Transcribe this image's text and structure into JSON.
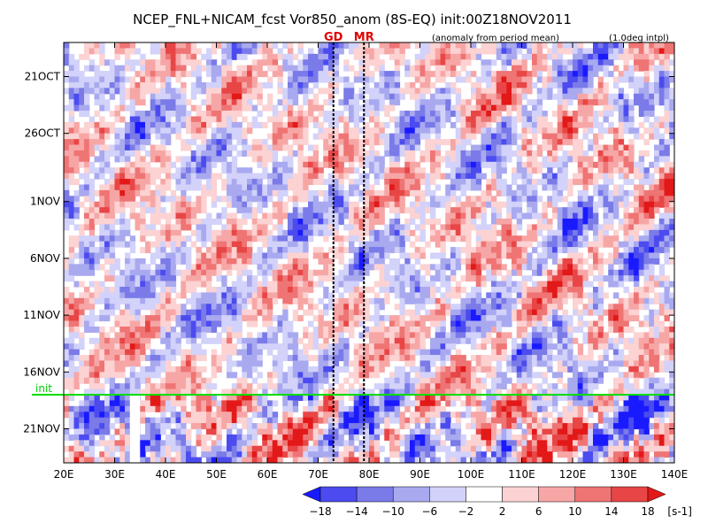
{
  "chart_data": {
    "type": "heatmap",
    "title": "NCEP_FNL+NICAM_fcst Vor850_anom (8S-EQ) init:00Z18NOV2011",
    "note_left": "(anomaly from period mean)",
    "note_right": "(1.0deg intpl)",
    "x_axis": {
      "range": [
        20,
        140
      ],
      "ticks": [
        20,
        30,
        40,
        50,
        60,
        70,
        80,
        90,
        100,
        110,
        120,
        130,
        140
      ],
      "tick_labels": [
        "20E",
        "30E",
        "40E",
        "50E",
        "60E",
        "70E",
        "80E",
        "90E",
        "100E",
        "110E",
        "120E",
        "130E",
        "140E"
      ]
    },
    "y_axis": {
      "start_day": 0,
      "end_day": 37,
      "ticks": [
        3,
        8,
        14,
        19,
        24,
        29,
        34
      ],
      "tick_labels": [
        "21OCT",
        "26OCT",
        "1NOV",
        "6NOV",
        "11NOV",
        "16NOV",
        "21NOV"
      ]
    },
    "markers": [
      {
        "label": "GD",
        "lon": 73
      },
      {
        "label": "MR",
        "lon": 79
      }
    ],
    "init_line": {
      "label": "init",
      "day": 31
    },
    "colorbar": {
      "unit": "[s-1]",
      "levels": [
        -18,
        -14,
        -10,
        -6,
        -2,
        2,
        6,
        10,
        14,
        18
      ],
      "level_labels": [
        "−18",
        "−14",
        "−10",
        "−6",
        "−2",
        "2",
        "6",
        "10",
        "14",
        "18"
      ],
      "colors": [
        "#1a1aff",
        "#4b4bf0",
        "#7a7ae8",
        "#a9a9f0",
        "#d2d2fa",
        "#ffffff",
        "#fcd2d2",
        "#f7a6a6",
        "#ef7474",
        "#e84646",
        "#e31818"
      ]
    },
    "missing_band": {
      "lon_min": 33,
      "lon_max": 35
    }
  }
}
